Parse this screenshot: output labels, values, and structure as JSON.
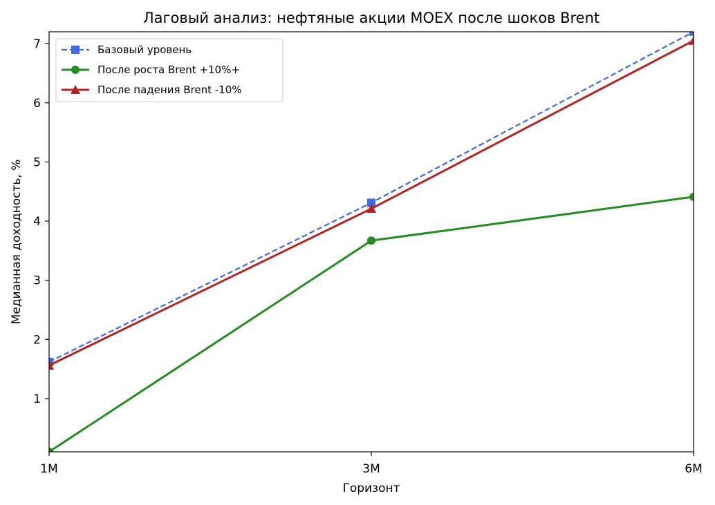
{
  "chart_data": {
    "type": "line",
    "title": "Лаговый анализ: нефтяные акции MOEX после шоков Brent",
    "xlabel": "Горизонт",
    "ylabel": "Медианная доходность, %",
    "categories": [
      "1M",
      "3M",
      "6M"
    ],
    "ylim": [
      0.1,
      7.2
    ],
    "yticks": [
      "1",
      "2",
      "3",
      "4",
      "5",
      "6",
      "7"
    ],
    "grid": false,
    "legend_position": "top-left",
    "series": [
      {
        "name": "Базовый уровень",
        "values": [
          1.62,
          4.31,
          7.2
        ],
        "color": "#4169e1",
        "marker": "square",
        "dash": true
      },
      {
        "name": "После роста Brent +10%+",
        "values": [
          0.1,
          3.67,
          4.41
        ],
        "color": "#228b22",
        "marker": "circle",
        "dash": false
      },
      {
        "name": "После падения Brent -10%",
        "values": [
          1.56,
          4.21,
          7.05
        ],
        "color": "#b22222",
        "marker": "triangle",
        "dash": false
      }
    ]
  }
}
